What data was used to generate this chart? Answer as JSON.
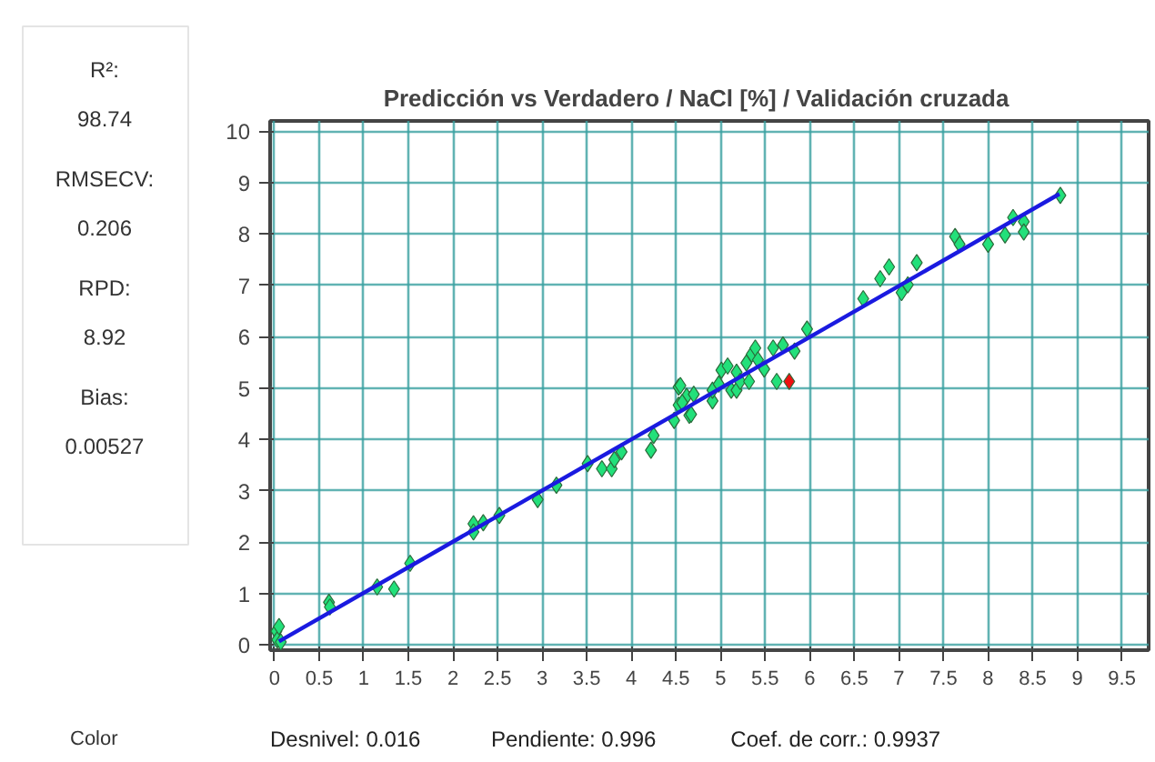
{
  "chart_data": {
    "type": "scatter",
    "title": "Predicción vs Verdadero  /  NaCl [%]  /  Validación cruzada",
    "xlim": [
      -0.05,
      9.8
    ],
    "ylim": [
      -0.1,
      10.2
    ],
    "xticks": [
      0,
      0.5,
      1,
      1.5,
      2,
      2.5,
      3,
      3.5,
      4,
      4.5,
      5,
      5.5,
      6,
      6.5,
      7,
      7.5,
      8,
      8.5,
      9,
      9.5
    ],
    "yticks": [
      0,
      1,
      2,
      3,
      4,
      5,
      6,
      7,
      8,
      9,
      10
    ],
    "grid": true,
    "marker": "diamond",
    "series": [
      {
        "color": "#22e07a",
        "x": [
          0.02,
          0.03,
          0.05,
          0.07,
          0.61,
          0.62,
          1.15,
          1.34,
          1.52,
          2.23,
          2.23,
          2.34,
          2.52,
          2.95,
          3.16,
          3.51,
          3.67,
          3.78,
          3.81,
          3.89,
          4.22,
          4.25,
          4.48,
          4.53,
          4.53,
          4.62,
          4.65,
          4.55,
          4.57,
          4.67,
          4.7,
          4.91,
          4.91,
          4.98,
          5.01,
          5.08,
          5.12,
          5.18,
          5.18,
          5.22,
          5.29,
          5.32,
          5.35,
          5.39,
          5.42,
          5.49,
          5.59,
          5.63,
          5.7,
          5.83,
          5.97,
          6.6,
          6.79,
          6.89,
          7.03,
          7.1,
          7.2,
          7.63,
          7.68,
          8.0,
          8.19,
          8.28,
          8.4,
          8.4,
          8.81
        ],
        "values": [
          0.27,
          0.1,
          0.36,
          0.06,
          0.83,
          0.74,
          1.13,
          1.09,
          1.59,
          2.36,
          2.2,
          2.38,
          2.52,
          2.83,
          3.11,
          3.53,
          3.43,
          3.43,
          3.61,
          3.76,
          3.79,
          4.08,
          4.37,
          5.02,
          4.67,
          4.84,
          4.47,
          5.05,
          4.72,
          4.49,
          4.88,
          4.75,
          4.96,
          5.08,
          5.35,
          5.43,
          4.96,
          5.31,
          4.96,
          5.13,
          5.49,
          5.13,
          5.66,
          5.78,
          5.55,
          5.37,
          5.78,
          5.13,
          5.84,
          5.72,
          6.15,
          6.74,
          7.13,
          7.36,
          6.86,
          7.01,
          7.44,
          7.95,
          7.8,
          7.8,
          7.98,
          8.32,
          8.24,
          8.04,
          8.75
        ]
      },
      {
        "color": "#ee1111",
        "x": [
          5.77
        ],
        "values": [
          5.13
        ]
      },
      {
        "type": "line",
        "color": "#1a1ae0",
        "marker": "none",
        "x": [
          0.05,
          8.8
        ],
        "values": [
          0.07,
          8.78
        ]
      }
    ],
    "annotations": [
      "R²:",
      "98.74",
      "RMSECV:",
      "0.206",
      "RPD:",
      "8.92",
      "Bias:",
      "0.00527",
      "Color",
      "Desnivel: 0.016",
      "Pendiente: 0.996",
      "Coef. de corr.: 0.9937"
    ]
  }
}
